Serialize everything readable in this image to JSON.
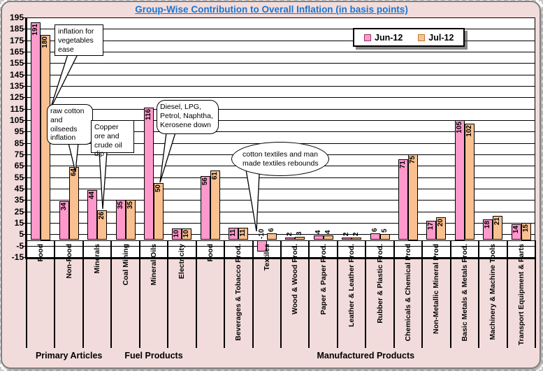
{
  "title": "Group-Wise Contribution to Overall Inflation (in basis points)",
  "legend": {
    "items": [
      {
        "label": "Jun-12",
        "color": "#FF99CC",
        "border": "#993366"
      },
      {
        "label": "Jul-12",
        "color": "#FAC090",
        "border": "#C07830"
      }
    ]
  },
  "colors": {
    "title_blue": "#1874D2",
    "panel_background": "#F2DCDB",
    "plot_background": "#FFFFFF",
    "gridline": "#000000",
    "bar_jun": "#FF99CC",
    "bar_jul": "#FAC090"
  },
  "chart_data": {
    "type": "bar",
    "title": "Group-Wise Contribution to Overall Inflation (in basis points)",
    "categories": [
      "Food",
      "Non-Food",
      "Minerals",
      "Coal Mining",
      "Mineral Oils",
      "Electricity",
      "Food",
      "Beverages & Tobacco Prod.",
      "Textiles",
      "Wood & Wood Prod.",
      "Paper & Paper Prod.",
      "Leather & Leather Prod.",
      "Rubber & Plastic Prod.",
      "Chemicals & Chemical Prod",
      "Non-Metallic Mineral Prod",
      "Basic Metals & Metals Prod.",
      "Machinery & Machine Tools",
      "Transport Equipment & Parts"
    ],
    "series": [
      {
        "name": "Jun-12",
        "values": [
          191,
          34,
          44,
          35,
          116,
          10,
          56,
          11,
          -10,
          2,
          4,
          2,
          6,
          71,
          17,
          105,
          18,
          14
        ]
      },
      {
        "name": "Jul-12",
        "values": [
          180,
          64,
          26,
          35,
          50,
          10,
          61,
          11,
          6,
          3,
          4,
          2,
          5,
          75,
          20,
          102,
          21,
          15
        ]
      }
    ],
    "groups": [
      {
        "label": "Primary Articles",
        "span": 3
      },
      {
        "label": "Fuel Products",
        "span": 3
      },
      {
        "label": "Manufactured Products",
        "span": 12
      }
    ],
    "ylim": [
      -15,
      195
    ],
    "ytick_step": 10,
    "yticks": [
      195,
      185,
      175,
      165,
      155,
      145,
      135,
      125,
      115,
      105,
      95,
      85,
      75,
      65,
      55,
      45,
      35,
      25,
      15,
      5,
      -5,
      -15
    ],
    "grid": true,
    "legend_position": "top-right",
    "xlabel": "",
    "ylabel": ""
  },
  "annotations": [
    {
      "id": "veg",
      "shape": "rect",
      "text": "inflation for vegetables ease"
    },
    {
      "id": "raw",
      "shape": "rounded",
      "text": "raw cotton and oilseeds inflation"
    },
    {
      "id": "cop",
      "shape": "rect",
      "text": "Copper ore and crude oil dip"
    },
    {
      "id": "die",
      "shape": "rounded",
      "text": "Diesel, LPG, Petrol, Naphtha, Kerosene down"
    },
    {
      "id": "cot",
      "shape": "ellipse",
      "text": "cotton textiles and man made textiles rebounds"
    }
  ]
}
